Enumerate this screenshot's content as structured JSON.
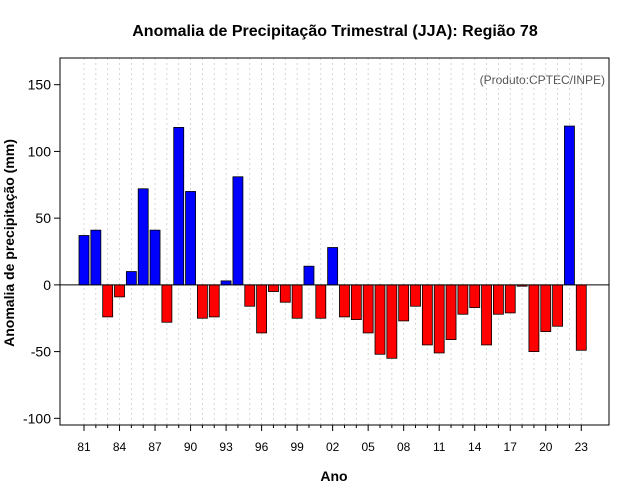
{
  "chart_data": {
    "type": "bar",
    "title": "Anomalia de Precipitação Trimestral (JJA): Região 78",
    "xlabel": "Ano",
    "ylabel": "Anomalia de precipitação (mm)",
    "annotation": "(Produto:CPTEC/INPE)",
    "ylim": [
      -105,
      170
    ],
    "yticks": [
      -100,
      -50,
      0,
      50,
      100,
      150
    ],
    "x_tick_labels": [
      "81",
      "84",
      "87",
      "90",
      "93",
      "96",
      "99",
      "02",
      "05",
      "08",
      "11",
      "14",
      "17",
      "20",
      "23"
    ],
    "grid": true,
    "colors": {
      "positive": "#0000ff",
      "negative": "#ff0000",
      "grid": "#cccccc"
    },
    "categories": [
      "1981",
      "1982",
      "1983",
      "1984",
      "1985",
      "1986",
      "1987",
      "1988",
      "1989",
      "1990",
      "1991",
      "1992",
      "1993",
      "1994",
      "1995",
      "1996",
      "1997",
      "1998",
      "1999",
      "2000",
      "2001",
      "2002",
      "2003",
      "2004",
      "2005",
      "2006",
      "2007",
      "2008",
      "2009",
      "2010",
      "2011",
      "2012",
      "2013",
      "2014",
      "2015",
      "2016",
      "2017",
      "2018",
      "2019",
      "2020",
      "2021",
      "2022",
      "2023"
    ],
    "values": [
      37,
      41,
      -24,
      -9,
      10,
      72,
      41,
      -28,
      118,
      70,
      -25,
      -24,
      3,
      81,
      -16,
      -36,
      -5,
      -13,
      -25,
      14,
      -25,
      28,
      -24,
      -26,
      -36,
      -52,
      -55,
      -27,
      -16,
      -45,
      -51,
      -41,
      -22,
      -17,
      -45,
      -22,
      -21,
      -1,
      -50,
      -35,
      -31,
      119,
      -49
    ]
  }
}
